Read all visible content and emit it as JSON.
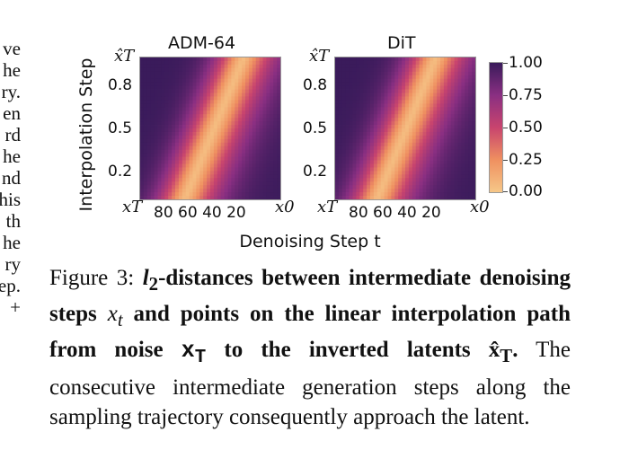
{
  "left_column_fragments": [
    "ve",
    "he",
    "ry.",
    "en",
    "rd",
    "he",
    "nd",
    "his",
    "th",
    "he",
    "ry",
    "ep.",
    "+"
  ],
  "chart_data": [
    {
      "type": "heatmap",
      "title": "ADM-64",
      "xlabel": "Denoising Step t",
      "ylabel": "Interpolation Step",
      "x_tick_labels": [
        "x_T",
        "80",
        "60",
        "40",
        "20",
        "x_0"
      ],
      "y_tick_labels": [
        "x̂_T",
        "0.8",
        "0.5",
        "0.2"
      ],
      "description_values": "distance normalized 0–1; low (light) along diagonal band, high (dark) in top-left and bottom-right",
      "colorscale": [
        "#f6c788",
        "#ef9060",
        "#c8446e",
        "#8a2f82",
        "#3a1b5b"
      ]
    },
    {
      "type": "heatmap",
      "title": "DiT",
      "xlabel": "Denoising Step t",
      "ylabel": "Interpolation Step",
      "x_tick_labels": [
        "x_T",
        "80",
        "60",
        "40",
        "20",
        "x_0"
      ],
      "y_tick_labels": [
        "x̂_T",
        "0.8",
        "0.5",
        "0.2"
      ],
      "colorscale": [
        "#f6c788",
        "#ef9060",
        "#c8446e",
        "#8a2f82",
        "#3a1b5b"
      ]
    }
  ],
  "figure": {
    "title1": "ADM-64",
    "title2": "DiT",
    "ylabel": "Interpolation Step",
    "xlabel": "Denoising Step t",
    "y_top": "x̂T",
    "y_ticks": [
      "0.8",
      "0.5",
      "0.2"
    ],
    "x_left": "xT",
    "x_ticks": "80 60 40 20",
    "x_right": "x0",
    "colorbar_ticks": [
      "1.00",
      "0.75",
      "0.50",
      "0.25",
      "0.00"
    ]
  },
  "caption": {
    "fig_label": "Figure 3:",
    "bold_l2": "l",
    "bold_sub": "2",
    "bold_text1": "-distances between intermediate denoising steps ",
    "math_xt": "x",
    "math_xt_sub": "t",
    "bold_text2": " and points on the linear interpolation path from noise ",
    "math_xT": "x",
    "math_xT_sub": "T",
    "bold_text3": " to the inverted latents ",
    "math_xhatT": "x̂",
    "math_xhatT_sub": "T",
    "bold_end": ".",
    "normal_text": " The consecutive intermediate generation steps along the sampling trajectory consequently approach the latent."
  }
}
